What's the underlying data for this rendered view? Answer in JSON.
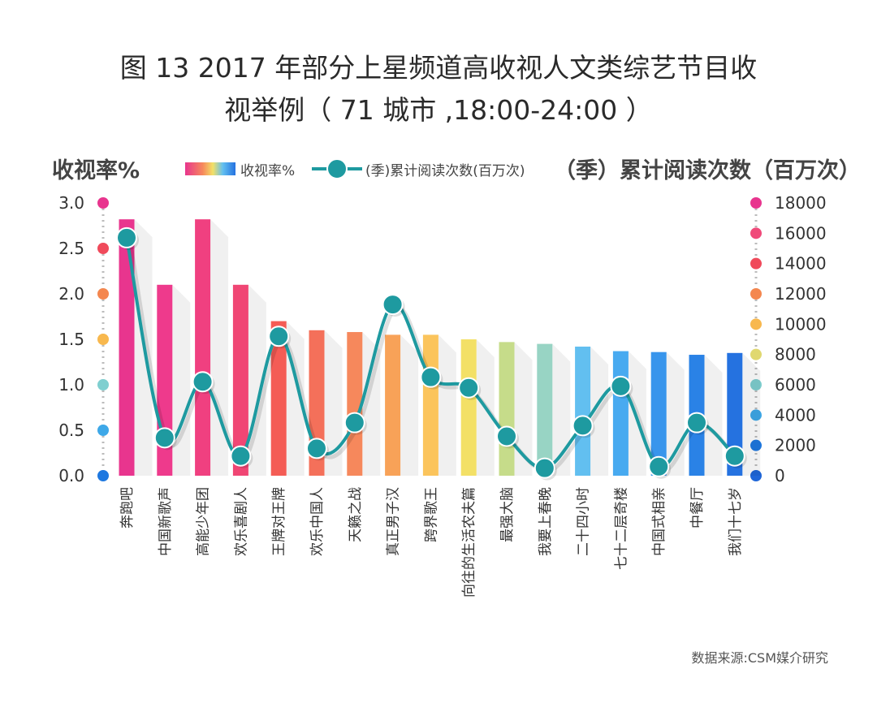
{
  "title": {
    "line1": "图 13  2017 年部分上星频道高收视人文类综艺节目收",
    "line2": "视举例（ 71 城市 ,18:00-24:00 ）"
  },
  "left_axis_title": "收视率%",
  "right_axis_title": "（季）累计阅读次数（百万次）",
  "legend": {
    "bar_label": "收视率%",
    "line_label": "(季)累计阅读次数(百万次)"
  },
  "source": "数据来源:CSM媒介研究",
  "colors": {
    "line": "#1e9aa0",
    "marker": "#1e9aa0",
    "marker_outline": "#ffffff",
    "left_dots": [
      "#e8358e",
      "#f04a5b",
      "#f4874f",
      "#f8b84e",
      "#7fcfd0",
      "#3ea8e8",
      "#1e78e0"
    ],
    "right_dots": [
      "#e8358e",
      "#f04a7a",
      "#f04a5b",
      "#f4874f",
      "#f8b84e",
      "#e0d870",
      "#7fcfd0",
      "#3ea8e8",
      "#1e78e0",
      "#1e66d8"
    ]
  },
  "chart_data": {
    "type": "bar",
    "categories": [
      "奔跑吧",
      "中国新歌声",
      "高能少年团",
      "欢乐喜剧人",
      "王牌对王牌",
      "欢乐中国人",
      "天籁之战",
      "真正男子汉",
      "跨界歌王",
      "向往的生活农夫篇",
      "最强大脑",
      "我要上春晚",
      "二十四小时",
      "七十二层奇楼",
      "中国式相亲",
      "中餐厅",
      "我们十七岁"
    ],
    "series": [
      {
        "name": "收视率%",
        "axis": "left",
        "values": [
          2.82,
          2.1,
          2.82,
          2.1,
          1.7,
          1.6,
          1.58,
          1.55,
          1.55,
          1.5,
          1.47,
          1.45,
          1.42,
          1.37,
          1.36,
          1.33,
          1.35
        ],
        "colors": [
          "#e8358e",
          "#ee3a8c",
          "#f04080",
          "#f04674",
          "#f45c55",
          "#f4705a",
          "#f6885c",
          "#f8a258",
          "#fbc45c",
          "#f3e066",
          "#c6dc8a",
          "#98d4c4",
          "#62bff0",
          "#48aaf0",
          "#3895ec",
          "#2a82e6",
          "#2572e0"
        ]
      },
      {
        "name": "(季)累计阅读次数(百万次)",
        "axis": "right",
        "values": [
          15700,
          2500,
          6200,
          1300,
          9200,
          1800,
          3500,
          11300,
          6500,
          5800,
          2600,
          500,
          3300,
          5900,
          600,
          3500,
          1300
        ]
      }
    ],
    "y_left": {
      "min": 0,
      "max": 3.0,
      "ticks": [
        "0.0",
        "0.5",
        "1.0",
        "1.5",
        "2.0",
        "2.5",
        "3.0"
      ]
    },
    "y_right": {
      "min": 0,
      "max": 18000,
      "ticks": [
        "0",
        "2000",
        "4000",
        "6000",
        "8000",
        "10000",
        "12000",
        "14000",
        "16000",
        "18000"
      ]
    },
    "legend_position": "top"
  }
}
